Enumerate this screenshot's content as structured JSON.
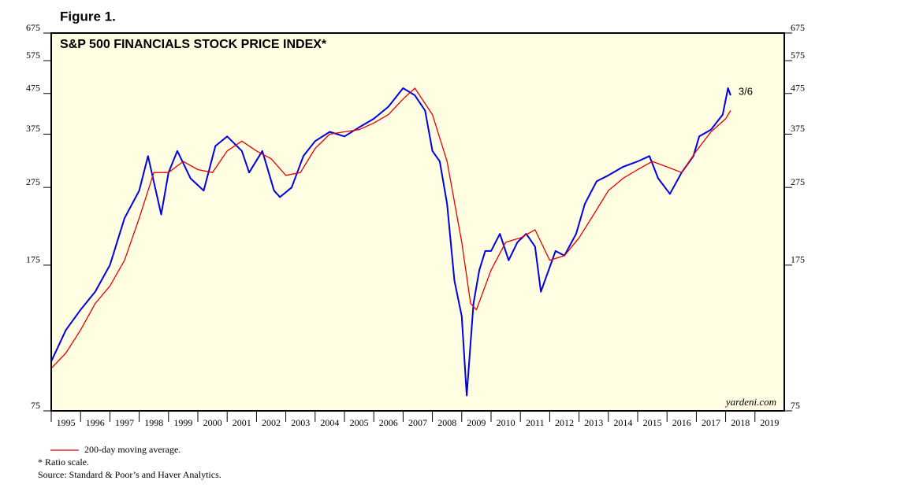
{
  "chart_data": {
    "type": "line",
    "figure_label": "Figure 1.",
    "title": "S&P 500 FINANCIALS STOCK PRICE INDEX*",
    "annotation": "3/6",
    "watermark": "yardeni.com",
    "footnotes": [
      "* Ratio scale.",
      "Source: Standard & Poor’s and Haver Analytics."
    ],
    "log_scale": true,
    "xlim": [
      1995,
      2020
    ],
    "xticks": [
      1995,
      1996,
      1997,
      1998,
      1999,
      2000,
      2001,
      2002,
      2003,
      2004,
      2005,
      2006,
      2007,
      2008,
      2009,
      2010,
      2011,
      2012,
      2013,
      2014,
      2015,
      2016,
      2017,
      2018,
      2019
    ],
    "ylim": [
      75,
      675
    ],
    "yticks": [
      75,
      175,
      275,
      375,
      475,
      575,
      675
    ],
    "background": "#fffde2",
    "series": [
      {
        "color": "#0000e6",
        "x": [
          1995.0,
          1995.5,
          1996.0,
          1996.5,
          1997.0,
          1997.5,
          1998.0,
          1998.3,
          1998.75,
          1999.0,
          1999.3,
          1999.75,
          2000.2,
          2000.6,
          2001.0,
          2001.5,
          2001.75,
          2002.2,
          2002.6,
          2002.8,
          2003.2,
          2003.6,
          2004.0,
          2004.5,
          2005.0,
          2005.5,
          2006.0,
          2006.5,
          2007.0,
          2007.4,
          2007.75,
          2008.0,
          2008.25,
          2008.5,
          2008.75,
          2009.0,
          2009.17,
          2009.4,
          2009.6,
          2009.8,
          2010.0,
          2010.3,
          2010.6,
          2010.9,
          2011.2,
          2011.5,
          2011.7,
          2011.9,
          2012.2,
          2012.5,
          2012.9,
          2013.2,
          2013.6,
          2014.0,
          2014.5,
          2015.0,
          2015.4,
          2015.7,
          2016.1,
          2016.5,
          2016.9,
          2017.1,
          2017.5,
          2017.9,
          2018.08,
          2018.17
        ],
        "values": [
          100,
          120,
          135,
          150,
          175,
          230,
          270,
          330,
          235,
          300,
          340,
          290,
          270,
          350,
          370,
          340,
          300,
          340,
          270,
          260,
          275,
          330,
          360,
          380,
          370,
          390,
          410,
          440,
          490,
          470,
          430,
          340,
          320,
          250,
          160,
          130,
          82,
          140,
          170,
          190,
          190,
          210,
          180,
          200,
          210,
          195,
          150,
          165,
          190,
          185,
          210,
          250,
          285,
          295,
          310,
          320,
          330,
          290,
          265,
          300,
          330,
          370,
          385,
          420,
          490,
          470
        ]
      },
      {
        "name": "200-day moving average.",
        "color": "#e60000",
        "x": [
          1995.0,
          1995.5,
          1996.0,
          1996.5,
          1997.0,
          1997.5,
          1998.0,
          1998.5,
          1999.0,
          1999.5,
          2000.0,
          2000.5,
          2001.0,
          2001.5,
          2002.0,
          2002.5,
          2003.0,
          2003.5,
          2004.0,
          2004.5,
          2005.0,
          2005.5,
          2006.0,
          2006.5,
          2007.0,
          2007.4,
          2008.0,
          2008.5,
          2009.0,
          2009.3,
          2009.5,
          2010.0,
          2010.5,
          2011.0,
          2011.5,
          2012.0,
          2012.5,
          2013.0,
          2013.5,
          2014.0,
          2014.5,
          2015.0,
          2015.5,
          2016.0,
          2016.5,
          2017.0,
          2017.5,
          2018.0,
          2018.17
        ],
        "values": [
          96,
          105,
          120,
          140,
          155,
          180,
          230,
          300,
          300,
          320,
          305,
          300,
          340,
          360,
          340,
          325,
          295,
          300,
          345,
          375,
          380,
          385,
          400,
          420,
          460,
          490,
          420,
          320,
          200,
          140,
          135,
          170,
          200,
          205,
          215,
          180,
          185,
          205,
          235,
          270,
          290,
          305,
          320,
          310,
          300,
          340,
          380,
          410,
          430
        ]
      }
    ]
  }
}
